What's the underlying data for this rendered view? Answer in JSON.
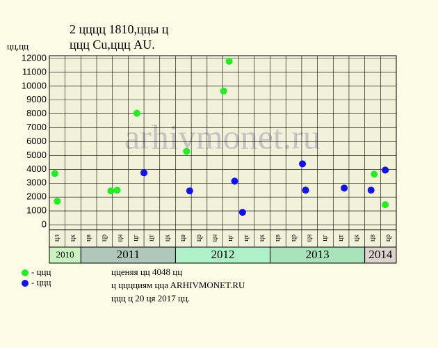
{
  "chart_data": {
    "type": "scatter",
    "title": "2 цццц 1810,ццы ц",
    "subtitle": "ццц Cu,ццц AU.",
    "y_label": "цц,цц",
    "watermark": "arhivmonet.ru",
    "categories": [
      "цл",
      "цк",
      "цв",
      "цр",
      "цн",
      "цг",
      "цт",
      "цк",
      "цв",
      "цр",
      "цн",
      "цг",
      "цт",
      "цк",
      "цв",
      "цр",
      "цн",
      "цг",
      "цт",
      "цк",
      "цв",
      "цр"
    ],
    "years": [
      "2010",
      "2011",
      "2012",
      "2013",
      "2014"
    ],
    "ylim": [
      0,
      12000
    ],
    "yticks": [
      0,
      1000,
      2000,
      3000,
      4000,
      5000,
      6000,
      7000,
      8000,
      9000,
      10000,
      11000,
      12000
    ],
    "grid": true,
    "series": [
      {
        "name": "- ццц",
        "color": "#22ee22",
        "x": [
          -0.15,
          0.0,
          3.4,
          3.8,
          5.05,
          8.2,
          10.55,
          10.9,
          20.1,
          20.8
        ],
        "values": [
          3700,
          1700,
          2450,
          2500,
          8050,
          5300,
          9650,
          11800,
          3650,
          1450
        ]
      },
      {
        "name": "- ццц",
        "color": "#1111ee",
        "x": [
          5.5,
          8.4,
          11.25,
          11.75,
          15.55,
          15.75,
          18.2,
          19.9,
          20.8
        ],
        "values": [
          3750,
          2450,
          3150,
          900,
          4400,
          2500,
          2650,
          2500,
          3950
        ]
      }
    ],
    "notes": [
      "цценяя цц 4048 цц",
      "ц цццциям ццa ARHIVMONET.RU",
      "ццц ц 20 ця 2017 цц."
    ]
  }
}
